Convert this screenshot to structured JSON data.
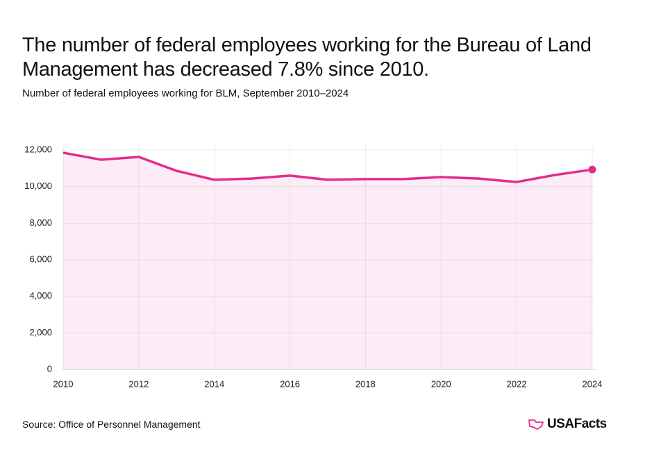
{
  "chart_data": {
    "type": "line",
    "title": "The number of federal employees working for the Bureau of Land Management has decreased 7.8% since 2010.",
    "subtitle": "Number of federal employees working for BLM, September 2010–2024",
    "source": "Source: Office of Personnel Management",
    "brand": "USAFacts",
    "x": [
      2010,
      2011,
      2012,
      2013,
      2014,
      2015,
      2016,
      2017,
      2018,
      2019,
      2020,
      2021,
      2022,
      2023,
      2024
    ],
    "series": [
      {
        "name": "Federal employees",
        "color": "#e32c8e",
        "values": [
          11850,
          11470,
          11620,
          10860,
          10370,
          10440,
          10600,
          10370,
          10410,
          10410,
          10520,
          10440,
          10250,
          10630,
          10930
        ]
      }
    ],
    "xlim": [
      2010,
      2024
    ],
    "xticks": [
      2010,
      2012,
      2014,
      2016,
      2018,
      2020,
      2022,
      2024
    ],
    "ylim": [
      0,
      12000
    ],
    "yticks": [
      0,
      {
        "value": 2000,
        "label": "2,000"
      },
      {
        "value": 4000,
        "label": "4,000"
      },
      {
        "value": 6000,
        "label": "6,000"
      },
      {
        "value": 8000,
        "label": "8,000"
      },
      {
        "value": 10000,
        "label": "10,000"
      },
      {
        "value": 12000,
        "label": "12,000"
      }
    ],
    "grid": true,
    "area": true
  }
}
